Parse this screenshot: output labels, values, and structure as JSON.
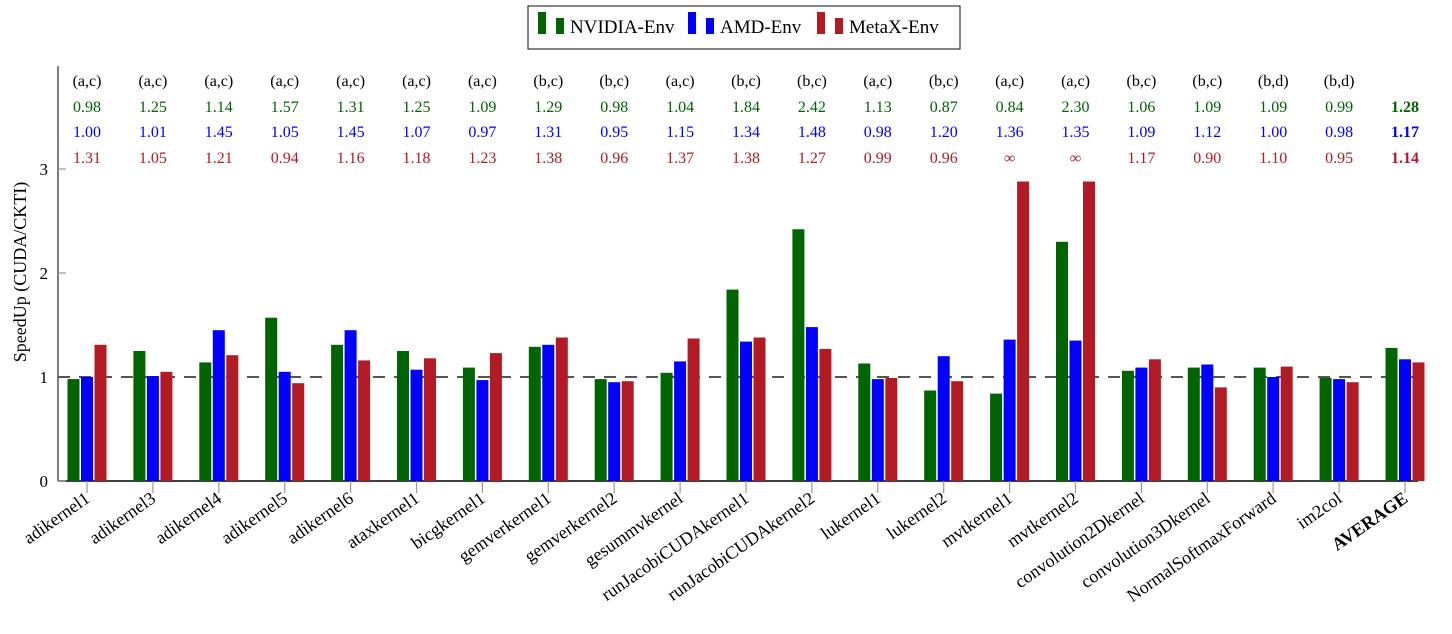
{
  "chart_data": {
    "type": "bar",
    "title": "",
    "xlabel": "",
    "ylabel": "SpeedUp (CUDA/CKTI)",
    "ylim": [
      0,
      3.0
    ],
    "yticks": [
      0,
      1,
      2,
      3
    ],
    "reference_line": 1,
    "legend_position": "top-center",
    "categories": [
      "adikernel1",
      "adikernel3",
      "adikernel4",
      "adikernel5",
      "adikernel6",
      "ataxkernel1",
      "bicgkernel1",
      "gemverkernel1",
      "gemverkernel2",
      "gesummvkernel",
      "runJacobiCUDAkernel1",
      "runJacobiCUDAkernel2",
      "lukernel1",
      "lukernel2",
      "mvtkernel1",
      "mvtkernel2",
      "convolution2Dkernel",
      "convolution3Dkernel",
      "NormalSoftmaxForward",
      "im2col",
      "AVERAGE"
    ],
    "category_tags": [
      "(a,c)",
      "(a,c)",
      "(a,c)",
      "(a,c)",
      "(a,c)",
      "(a,c)",
      "(a,c)",
      "(b,c)",
      "(b,c)",
      "(a,c)",
      "(b,c)",
      "(b,c)",
      "(a,c)",
      "(b,c)",
      "(a,c)",
      "(a,c)",
      "(b,c)",
      "(b,c)",
      "(b,d)",
      "(b,d)",
      ""
    ],
    "series": [
      {
        "name": "NVIDIA-Env",
        "color": "#006400",
        "values": [
          0.98,
          1.25,
          1.14,
          1.57,
          1.31,
          1.25,
          1.09,
          1.29,
          0.98,
          1.04,
          1.84,
          2.42,
          1.13,
          0.87,
          0.84,
          2.3,
          1.06,
          1.09,
          1.09,
          0.99,
          1.28
        ],
        "value_labels": [
          "0.98",
          "1.25",
          "1.14",
          "1.57",
          "1.31",
          "1.25",
          "1.09",
          "1.29",
          "0.98",
          "1.04",
          "1.84",
          "2.42",
          "1.13",
          "0.87",
          "0.84",
          "2.30",
          "1.06",
          "1.09",
          "1.09",
          "0.99",
          "1.28"
        ]
      },
      {
        "name": "AMD-Env",
        "color": "#0000ff",
        "values": [
          1.0,
          1.01,
          1.45,
          1.05,
          1.45,
          1.07,
          0.97,
          1.31,
          0.95,
          1.15,
          1.34,
          1.48,
          0.98,
          1.2,
          1.36,
          1.35,
          1.09,
          1.12,
          1.0,
          0.98,
          1.17
        ],
        "value_labels": [
          "1.00",
          "1.01",
          "1.45",
          "1.05",
          "1.45",
          "1.07",
          "0.97",
          "1.31",
          "0.95",
          "1.15",
          "1.34",
          "1.48",
          "0.98",
          "1.20",
          "1.36",
          "1.35",
          "1.09",
          "1.12",
          "1.00",
          "0.98",
          "1.17"
        ]
      },
      {
        "name": "MetaX-Env",
        "color": "#b31b24",
        "values": [
          1.31,
          1.05,
          1.21,
          0.94,
          1.16,
          1.18,
          1.23,
          1.38,
          0.96,
          1.37,
          1.38,
          1.27,
          0.99,
          0.96,
          "inf",
          "inf",
          1.17,
          0.9,
          1.1,
          0.95,
          1.14
        ],
        "value_labels": [
          "1.31",
          "1.05",
          "1.21",
          "0.94",
          "1.16",
          "1.18",
          "1.23",
          "1.38",
          "0.96",
          "1.37",
          "1.38",
          "1.27",
          "0.99",
          "0.96",
          "∞",
          "∞",
          "1.17",
          "0.90",
          "1.10",
          "0.95",
          "1.14"
        ]
      }
    ]
  }
}
